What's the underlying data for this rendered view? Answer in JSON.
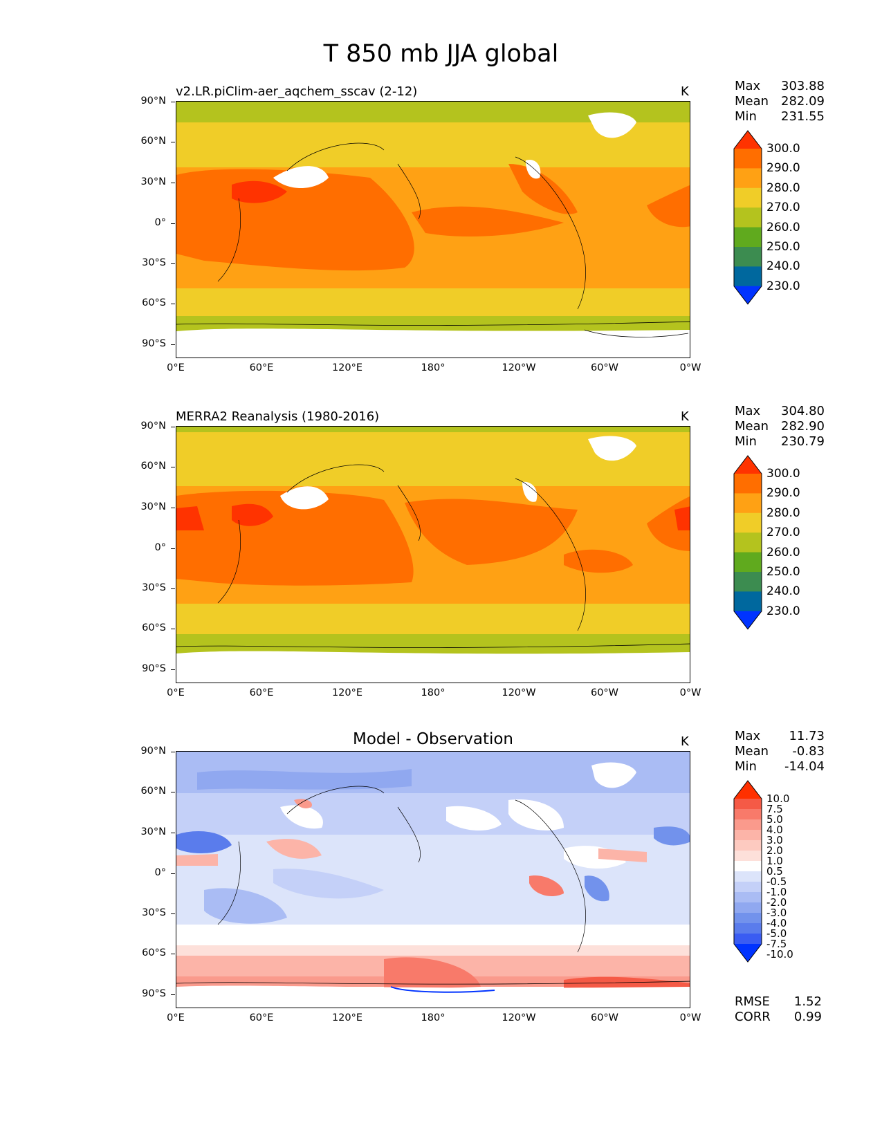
{
  "figure_title": "T 850 mb JJA global",
  "units": "K",
  "x_ticks": [
    "0°E",
    "60°E",
    "120°E",
    "180°",
    "120°W",
    "60°W",
    "0°W"
  ],
  "y_ticks": [
    "90°N",
    "60°N",
    "30°N",
    "0°",
    "30°S",
    "60°S",
    "90°S"
  ],
  "panels": [
    {
      "title": "v2.LR.piClim-aer_aqchem_sscav (2-12)",
      "stats": {
        "max_label": "Max",
        "max": "303.88",
        "mean_label": "Mean",
        "mean": "282.09",
        "min_label": "Min",
        "min": "231.55"
      },
      "colorbar_levels": [
        "300.0",
        "290.0",
        "280.0",
        "270.0",
        "260.0",
        "250.0",
        "240.0",
        "230.0"
      ]
    },
    {
      "title": "MERRA2 Reanalysis (1980-2016)",
      "stats": {
        "max_label": "Max",
        "max": "304.80",
        "mean_label": "Mean",
        "mean": "282.90",
        "min_label": "Min",
        "min": "230.79"
      },
      "colorbar_levels": [
        "300.0",
        "290.0",
        "280.0",
        "270.0",
        "260.0",
        "250.0",
        "240.0",
        "230.0"
      ]
    },
    {
      "title": "Model - Observation",
      "stats": {
        "max_label": "Max",
        "max": "11.73",
        "mean_label": "Mean",
        "mean": "-0.83",
        "min_label": "Min",
        "min": "-14.04"
      },
      "colorbar_levels": [
        "10.0",
        "7.5",
        "5.0",
        "4.0",
        "3.0",
        "2.0",
        "1.0",
        "0.5",
        "-0.5",
        "-1.0",
        "-2.0",
        "-3.0",
        "-4.0",
        "-5.0",
        "-7.5",
        "-10.0"
      ]
    }
  ],
  "diff_metrics": {
    "rmse_label": "RMSE",
    "rmse": "1.52",
    "corr_label": "CORR",
    "corr": "0.99"
  },
  "colors": {
    "abs_scale": [
      "#ff3300",
      "#ff6e00",
      "#ffa114",
      "#f0cd28",
      "#b4c31e",
      "#60aa1e",
      "#3c8c50",
      "#00689e",
      "#0033ff"
    ],
    "diff_scale": [
      "#ff3000",
      "#f55a46",
      "#f87a6a",
      "#fa9a8c",
      "#fcb4a8",
      "#fdcac0",
      "#fde0da",
      "#ffffff",
      "#dce4fa",
      "#c4d0f8",
      "#aabcf4",
      "#90a8f0",
      "#7292ec",
      "#5a7cec",
      "#3a5cf2",
      "#0033ff"
    ]
  }
}
